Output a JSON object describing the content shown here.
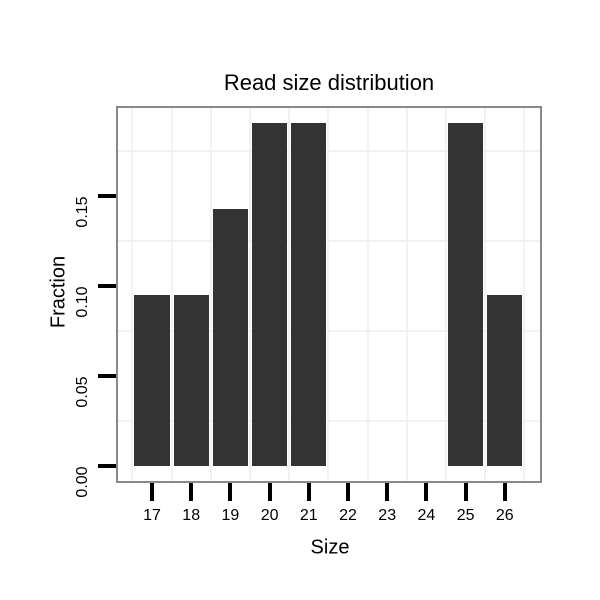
{
  "chart_data": {
    "type": "bar",
    "title": "Read size distribution",
    "xlabel": "Size",
    "ylabel": "Fraction",
    "categories": [
      17,
      18,
      19,
      20,
      21,
      22,
      23,
      24,
      25,
      26
    ],
    "values": [
      0.0952,
      0.0952,
      0.1429,
      0.1905,
      0.1905,
      0,
      0,
      0,
      0.1905,
      0.0952
    ],
    "ytick_labels": [
      "0.00",
      "0.05",
      "0.10",
      "0.15"
    ],
    "ytick_values": [
      0.0,
      0.05,
      0.1,
      0.15
    ],
    "y_minor_gridline_values": [
      0.025,
      0.075,
      0.125,
      0.175
    ],
    "ylim": [
      -0.0095,
      0.198
    ],
    "grid": "minor gridlines only, light gray on white panel",
    "legend": "none",
    "colors": {
      "bar_fill": "#333333",
      "panel_border": "#898989",
      "axis_tick": "#000000",
      "gridline": "#f2f2f2",
      "text": "#000000",
      "background": "#ffffff"
    }
  }
}
